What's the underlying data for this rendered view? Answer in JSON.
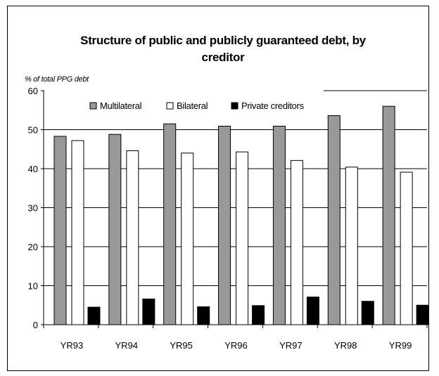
{
  "chart_data": {
    "type": "bar",
    "title": "Structure of public and publicly guaranteed debt, by creditor",
    "title_lines": [
      "Structure of public and publicly guaranteed debt, by",
      "creditor"
    ],
    "ylabel": "% of total PPG debt",
    "xlabel": "",
    "categories": [
      "YR93",
      "YR94",
      "YR95",
      "YR96",
      "YR97",
      "YR98",
      "YR99"
    ],
    "ylim": [
      0,
      60
    ],
    "yticks": [
      0,
      10,
      20,
      30,
      40,
      50,
      60
    ],
    "grid": true,
    "legend_position": "top",
    "series": [
      {
        "name": "Multilateral",
        "color": "#999999",
        "values": [
          48.3,
          48.8,
          51.5,
          50.9,
          50.9,
          53.6,
          56.0
        ]
      },
      {
        "name": "Bilateral",
        "color": "#ffffff",
        "values": [
          47.2,
          44.6,
          44.0,
          44.3,
          42.1,
          40.4,
          39.1
        ]
      },
      {
        "name": "Private creditors",
        "color": "#000000",
        "values": [
          4.5,
          6.6,
          4.6,
          4.9,
          7.1,
          6.0,
          5.0
        ]
      }
    ]
  }
}
